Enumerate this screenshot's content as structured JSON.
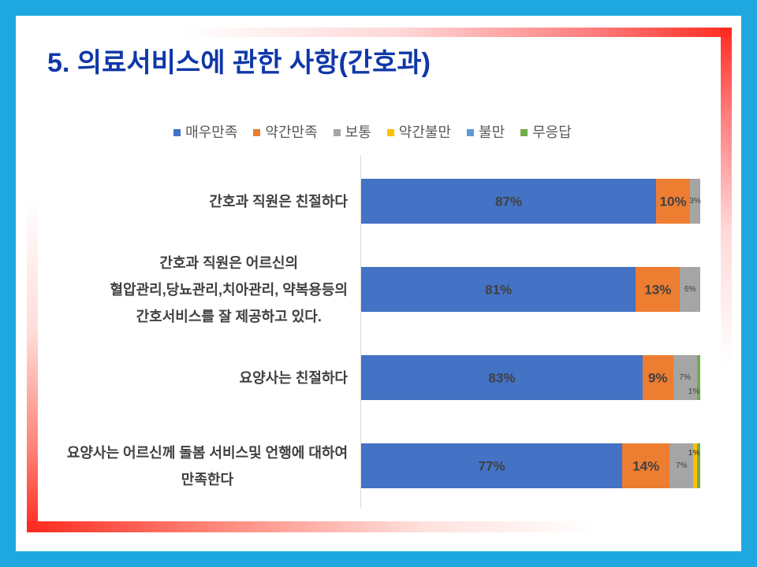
{
  "slide": {
    "title": "5. 의료서비스에 관한 사항(간호과)",
    "colors": {
      "background": "#1FA8E0",
      "panel": "#FFFFFF",
      "frame_accent": "#FF2A1F",
      "title": "#0F37A8"
    }
  },
  "chart_data": {
    "type": "bar",
    "orientation": "horizontal",
    "stacking": "percent",
    "categories": [
      "간호과 직원은 친절하다",
      "간호과 직원은 어르신의\n혈압관리,당뇨관리,치아관리, 약복용등의\n간호서비스를 잘 제공하고 있다.",
      "요양사는 친절하다",
      "요양사는 어르신께 돌봄 서비스및 언행에 대하여\n만족한다"
    ],
    "series": [
      {
        "name": "매우만족",
        "color": "#4472C4",
        "values": [
          87,
          81,
          83,
          77
        ],
        "labels": [
          "87%",
          "81%",
          "83%",
          "77%"
        ]
      },
      {
        "name": "약간만족",
        "color": "#ED7D31",
        "values": [
          10,
          13,
          9,
          14
        ],
        "labels": [
          "10%",
          "13%",
          "9%",
          "14%"
        ]
      },
      {
        "name": "보통",
        "color": "#A5A5A5",
        "values": [
          3,
          6,
          7,
          7
        ],
        "labels": [
          "3%",
          "6%",
          "7%",
          "7%"
        ]
      },
      {
        "name": "약간불만",
        "color": "#FFC000",
        "values": [
          0,
          0,
          0,
          1
        ],
        "labels": [
          null,
          null,
          null,
          "1%"
        ]
      },
      {
        "name": "불만",
        "color": "#5B9BD5",
        "values": [
          0,
          0,
          0,
          0
        ],
        "labels": [
          null,
          null,
          null,
          null
        ]
      },
      {
        "name": "무응답",
        "color": "#70AD47",
        "values": [
          0,
          0,
          1,
          1
        ],
        "labels": [
          null,
          null,
          "1%",
          "1%"
        ]
      }
    ],
    "xlim": [
      0,
      100
    ],
    "legend_position": "top",
    "grid": false
  }
}
